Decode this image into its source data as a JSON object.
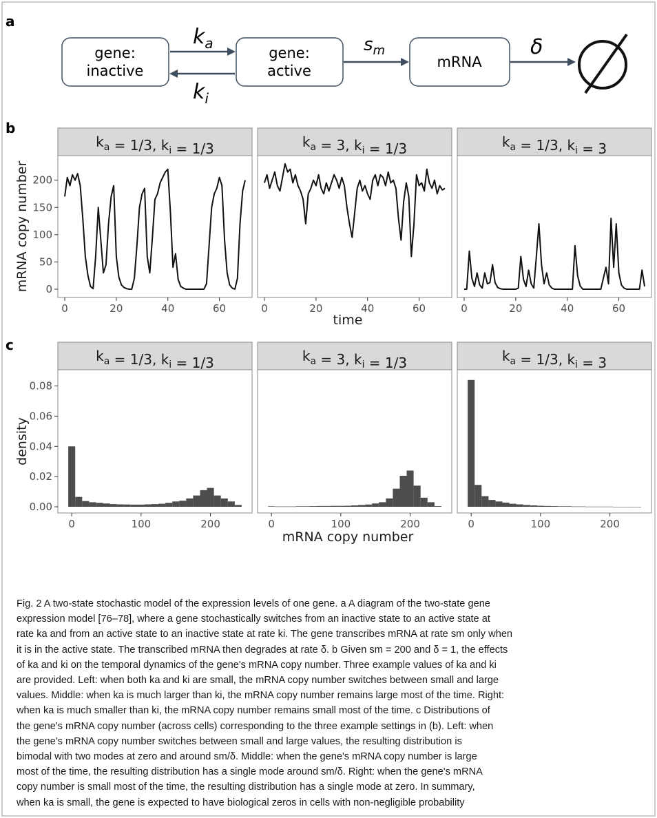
{
  "panel_labels": {
    "a": "a",
    "b": "b",
    "c": "c"
  },
  "diagram": {
    "box_inactive": [
      "gene:",
      "inactive"
    ],
    "box_active": [
      "gene:",
      "active"
    ],
    "box_mrna": "mRNA",
    "rate_activate": "k_a",
    "rate_inactivate": "k_i",
    "rate_transcribe": "s_m",
    "rate_degrade": "δ"
  },
  "facet_titles": [
    "k_a = 1/3,   k_i = 1/3",
    "k_a = 3,   k_i = 1/3",
    "k_a = 1/3,   k_i = 3"
  ],
  "chart_data": [
    {
      "type": "line",
      "panel": "b",
      "xlabel": "time",
      "ylabel": "mRNA copy number",
      "xlim": [
        0,
        70
      ],
      "ylim": [
        0,
        240
      ],
      "x_ticks": [
        "0",
        "20",
        "40",
        "60"
      ],
      "y_ticks": [
        "0",
        "50",
        "100",
        "150",
        "200"
      ],
      "grid": false,
      "series": [
        {
          "facet": "k_a = 1/3, k_i = 1/3",
          "x": [
            0,
            1,
            2,
            3,
            4,
            5,
            6,
            7,
            8,
            9,
            10,
            11,
            12,
            13,
            14,
            15,
            16,
            17,
            18,
            19,
            20,
            21,
            22,
            23,
            24,
            25,
            26,
            27,
            28,
            29,
            30,
            31,
            32,
            33,
            34,
            35,
            36,
            37,
            38,
            39,
            40,
            41,
            42,
            43,
            44,
            45,
            46,
            47,
            48,
            49,
            50,
            51,
            52,
            53,
            54,
            55,
            56,
            57,
            58,
            59,
            60,
            61,
            62,
            63,
            64,
            65,
            66,
            67,
            68,
            69,
            70
          ],
          "y": [
            170,
            205,
            190,
            210,
            200,
            212,
            190,
            130,
            60,
            25,
            5,
            1,
            60,
            150,
            90,
            30,
            45,
            120,
            170,
            190,
            60,
            22,
            8,
            3,
            1,
            0,
            0,
            20,
            80,
            150,
            175,
            185,
            60,
            30,
            95,
            165,
            175,
            195,
            205,
            215,
            220,
            140,
            40,
            65,
            18,
            5,
            2,
            0,
            0,
            0,
            0,
            0,
            0,
            0,
            0,
            10,
            80,
            150,
            175,
            185,
            205,
            190,
            90,
            30,
            8,
            2,
            0,
            20,
            120,
            180,
            200
          ]
        },
        {
          "facet": "k_a = 3, k_i = 1/3",
          "x": [
            0,
            1,
            2,
            3,
            4,
            5,
            6,
            7,
            8,
            9,
            10,
            11,
            12,
            13,
            14,
            15,
            16,
            17,
            18,
            19,
            20,
            21,
            22,
            23,
            24,
            25,
            26,
            27,
            28,
            29,
            30,
            31,
            32,
            33,
            34,
            35,
            36,
            37,
            38,
            39,
            40,
            41,
            42,
            43,
            44,
            45,
            46,
            47,
            48,
            49,
            50,
            51,
            52,
            53,
            54,
            55,
            56,
            57,
            58,
            59,
            60,
            61,
            62,
            63,
            64,
            65,
            66,
            67,
            68,
            69,
            70
          ],
          "y": [
            195,
            210,
            185,
            200,
            215,
            190,
            180,
            205,
            230,
            215,
            220,
            195,
            210,
            190,
            180,
            165,
            120,
            175,
            185,
            200,
            190,
            210,
            185,
            175,
            195,
            180,
            195,
            210,
            200,
            185,
            205,
            190,
            150,
            120,
            95,
            140,
            185,
            200,
            180,
            190,
            175,
            165,
            200,
            210,
            190,
            210,
            205,
            190,
            215,
            195,
            200,
            185,
            130,
            90,
            160,
            195,
            170,
            60,
            120,
            210,
            190,
            195,
            180,
            220,
            195,
            185,
            200,
            175,
            190,
            182,
            185
          ]
        },
        {
          "facet": "k_a = 1/3, k_i = 3",
          "x": [
            0,
            1,
            2,
            3,
            4,
            5,
            6,
            7,
            8,
            9,
            10,
            11,
            12,
            13,
            14,
            15,
            16,
            17,
            18,
            19,
            20,
            21,
            22,
            23,
            24,
            25,
            26,
            27,
            28,
            29,
            30,
            31,
            32,
            33,
            34,
            35,
            36,
            37,
            38,
            39,
            40,
            41,
            42,
            43,
            44,
            45,
            46,
            47,
            48,
            49,
            50,
            51,
            52,
            53,
            54,
            55,
            56,
            57,
            58,
            59,
            60,
            61,
            62,
            63,
            64,
            65,
            66,
            67,
            68,
            69,
            70
          ],
          "y": [
            0,
            0,
            70,
            20,
            5,
            30,
            8,
            2,
            30,
            10,
            12,
            45,
            12,
            3,
            1,
            0,
            0,
            0,
            0,
            0,
            0,
            2,
            60,
            18,
            5,
            35,
            10,
            2,
            60,
            120,
            45,
            10,
            30,
            8,
            2,
            0,
            0,
            0,
            0,
            0,
            0,
            0,
            0,
            80,
            25,
            6,
            0,
            0,
            0,
            0,
            0,
            0,
            0,
            0,
            20,
            40,
            10,
            130,
            40,
            120,
            30,
            8,
            2,
            0,
            0,
            0,
            0,
            0,
            0,
            35,
            5
          ]
        }
      ]
    },
    {
      "type": "bar",
      "panel": "c",
      "xlabel": "mRNA copy number",
      "ylabel": "density",
      "xlim": [
        -20,
        260
      ],
      "ylim": [
        0,
        0.088
      ],
      "x_ticks": [
        "0",
        "100",
        "200"
      ],
      "y_ticks": [
        "0.00",
        "0.02",
        "0.04",
        "0.06",
        "0.08"
      ],
      "grid": false,
      "bin_edges": [
        -5,
        5,
        15,
        25,
        35,
        45,
        55,
        65,
        75,
        85,
        95,
        105,
        115,
        125,
        135,
        145,
        155,
        165,
        175,
        185,
        195,
        205,
        215,
        225,
        235,
        245
      ],
      "series": [
        {
          "facet": "k_a = 1/3, k_i = 1/3",
          "values": [
            0.04,
            0.0065,
            0.0038,
            0.003,
            0.0026,
            0.0022,
            0.0018,
            0.0016,
            0.0015,
            0.0014,
            0.0014,
            0.0016,
            0.0018,
            0.002,
            0.0026,
            0.0035,
            0.004,
            0.0055,
            0.0075,
            0.011,
            0.0125,
            0.0075,
            0.0055,
            0.0035,
            0.0012
          ]
        },
        {
          "facet": "k_a = 3, k_i = 1/3",
          "values": [
            0.0003,
            0.0002,
            0.0002,
            0.0002,
            0.0003,
            0.0003,
            0.0004,
            0.0005,
            0.0005,
            0.0006,
            0.0006,
            0.0007,
            0.0009,
            0.0012,
            0.0015,
            0.0022,
            0.003,
            0.0055,
            0.012,
            0.0205,
            0.024,
            0.014,
            0.006,
            0.003,
            0.0004
          ]
        },
        {
          "facet": "k_a = 1/3, k_i = 3",
          "values": [
            0.084,
            0.0145,
            0.007,
            0.0045,
            0.0035,
            0.0028,
            0.002,
            0.0016,
            0.0012,
            0.0009,
            0.0007,
            0.0005,
            0.0004,
            0.0003,
            0.0003,
            0.0002,
            0.0002,
            0.0001,
            0.0001,
            0.0001,
            0.0001,
            0.0,
            0.0,
            0.0,
            0.0
          ]
        }
      ]
    }
  ],
  "caption": {
    "fig_label": "Fig. 2",
    "title": "A two-state stochastic model of the expression levels of one gene.",
    "lines": [
      "Fig. 2  A two-state stochastic model of the expression levels of one gene. a A diagram of the two-state gene",
      "expression model [76–78], where a gene stochastically switches from an inactive state to an active state at",
      "rate ka and from an active state to an inactive state at rate ki. The gene transcribes mRNA at rate sm only when",
      "it is in the active state. The transcribed mRNA then degrades at rate δ. b Given sm = 200 and δ = 1, the effects",
      "of ka and ki on the temporal dynamics of the gene's mRNA copy number. Three example values of ka and ki",
      "are provided. Left: when both ka and ki are small, the mRNA copy number switches between small and large",
      "values. Middle: when ka is much larger than ki, the mRNA copy number remains large most of the time. Right:",
      "when ka is much smaller than ki, the mRNA copy number remains small most of the time. c Distributions of",
      "the gene's mRNA copy number (across cells) corresponding to the three example settings in (b). Left: when",
      "the gene's mRNA copy number switches between small and large values, the resulting distribution is",
      "bimodal with two modes at zero and around sm/δ. Middle: when the gene's mRNA copy number is large",
      "most of the time, the resulting distribution has a single mode around sm/δ. Right: when the gene's mRNA",
      "copy number is small most of the time, the resulting distribution has a single mode at zero. In summary,",
      "when ka is small, the gene is expected to have biological zeros in cells with non-negligible probability"
    ]
  },
  "colors": {
    "line": "#111111",
    "bar": "#4d4d4d",
    "strip": "#d9d9d9",
    "arrow": "#3f4e5f",
    "frame": "#8a8a8a"
  }
}
